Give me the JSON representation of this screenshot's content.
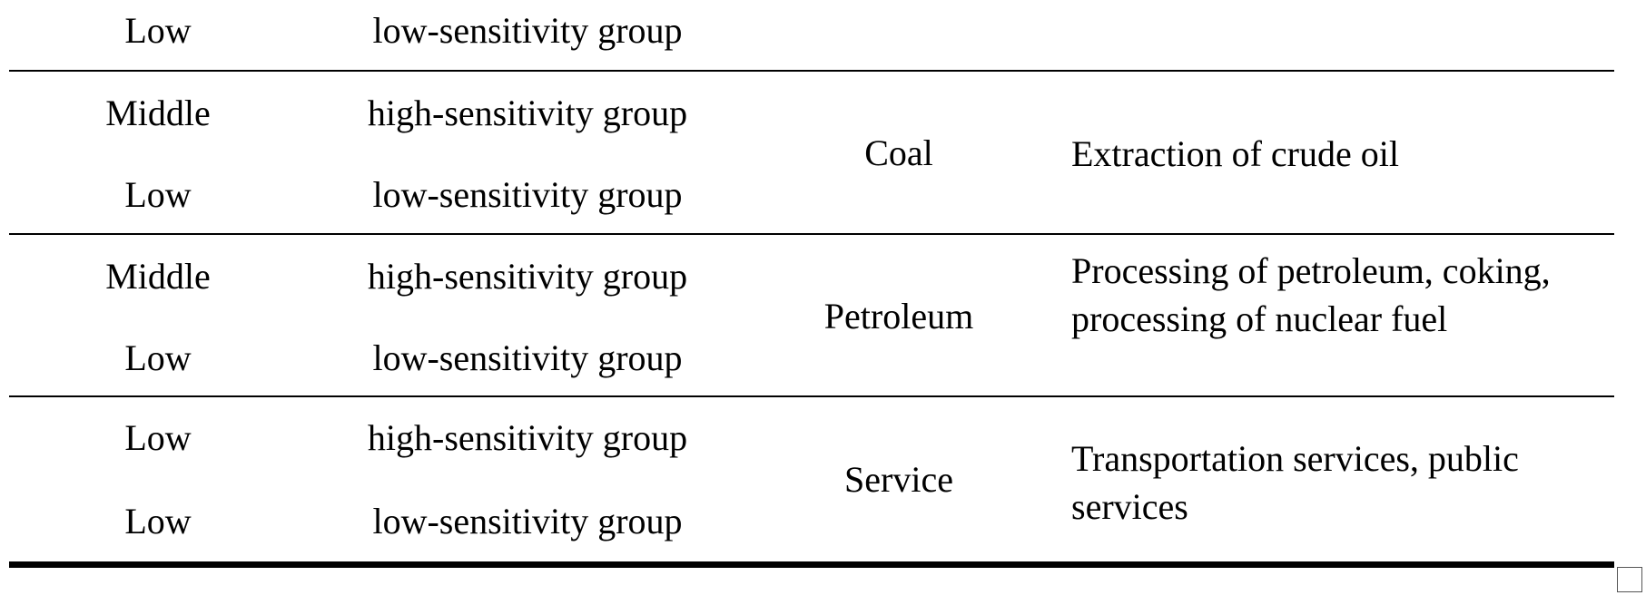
{
  "table": {
    "rows": [
      {
        "level": "Low",
        "group": "low-sensitivity group"
      },
      {
        "level": "Middle",
        "group": "high-sensitivity group"
      },
      {
        "level": "Low",
        "group": "low-sensitivity group"
      },
      {
        "level": "Middle",
        "group": "high-sensitivity group"
      },
      {
        "level": "Low",
        "group": "low-sensitivity group"
      },
      {
        "level": "Low",
        "group": "high-sensitivity group"
      },
      {
        "level": "Low",
        "group": "low-sensitivity group"
      }
    ],
    "blocks": [
      {
        "sector": "Coal",
        "industry": "Extraction of crude oil"
      },
      {
        "sector": "Petroleum",
        "industry": "Processing of petroleum, coking, processing of nuclear fuel"
      },
      {
        "sector": "Service",
        "industry": "Transportation services, public services"
      }
    ]
  }
}
